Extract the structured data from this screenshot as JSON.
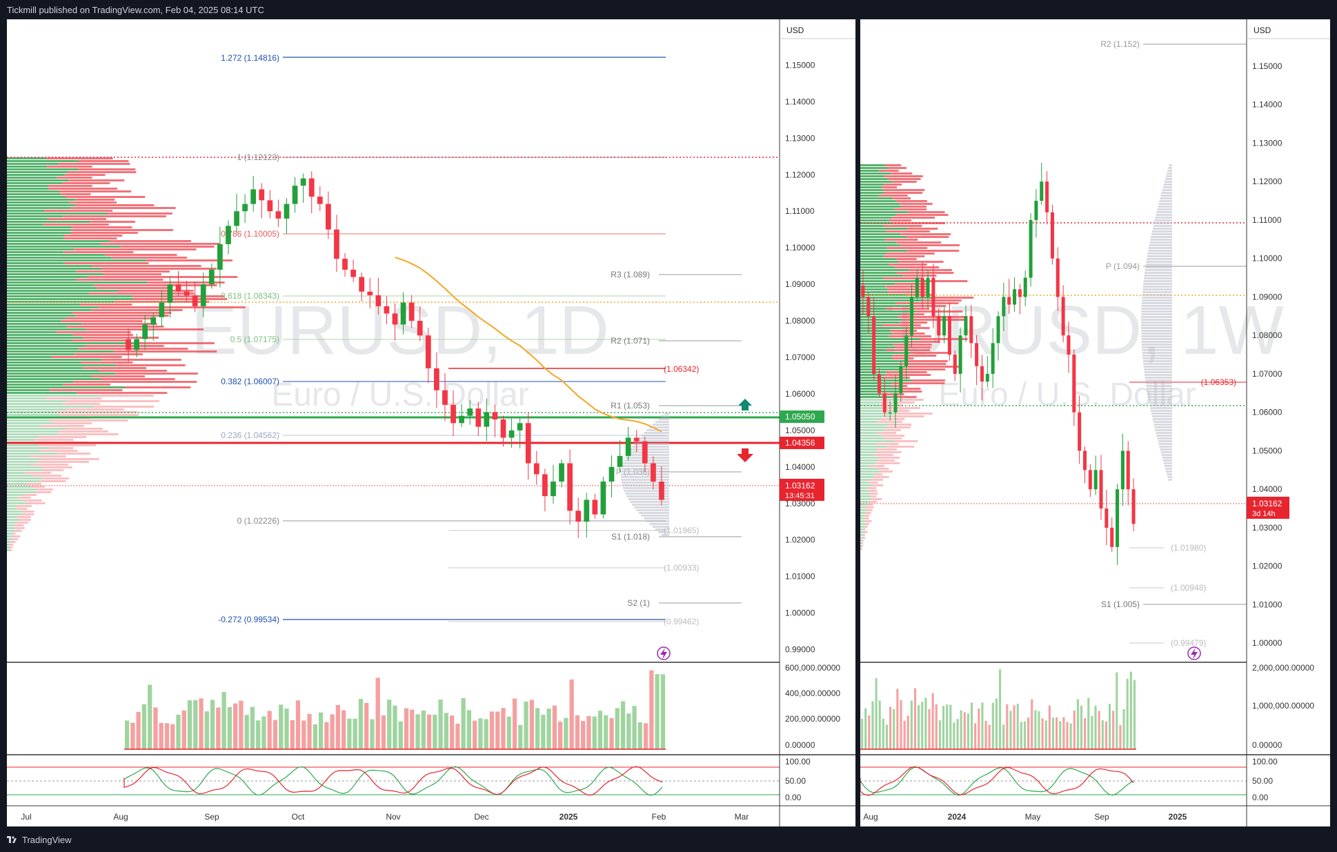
{
  "header": {
    "publisher_text": "Tickmill published on TradingView.com, Feb 04, 2025 08:14 UTC"
  },
  "footer": {
    "brand": "TradingView"
  },
  "colors": {
    "up": "#22a03a",
    "down": "#f23645",
    "fib_blue": "#1e4fb0",
    "ema": "#f5a623",
    "support_green": "#2fa84f",
    "resistance_red": "#e8242f"
  },
  "left_chart": {
    "watermark_symbol": "EURUSD, 1D",
    "watermark_name": "Euro / U.S. Dollar",
    "currency": "USD",
    "price_axis": [
      "1.15000",
      "1.14000",
      "1.13000",
      "1.12000",
      "1.11000",
      "1.10000",
      "1.09000",
      "1.08000",
      "1.07000",
      "1.06000",
      "1.05000",
      "1.04000",
      "1.03000",
      "1.02000",
      "1.01000",
      "1.00000",
      "0.99000"
    ],
    "time_axis": [
      "Jul",
      "Aug",
      "Sep",
      "Oct",
      "Nov",
      "Dec",
      "2025",
      "Feb",
      "Mar"
    ],
    "fib_labels": {
      "f1272": "1.272 (1.14816)",
      "f1": "1 (1.12123)",
      "f786": "0.786 (1.10005)",
      "f618": "0.618 (1.08343)",
      "f5": "0.5 (1.07175)",
      "f382": "0.382 (1.06007)",
      "f236": "0.236 (1.04562)",
      "f0": "0 (1.02226)",
      "fm272": "-0.272 (0.99534)"
    },
    "pivot_labels": {
      "r3": "R3 (1.089)",
      "r2": "R2 (1.071)",
      "r1": "R1 (1.053)",
      "p": "P (1.036)",
      "s1": "S1 (1.018)",
      "s2": "S2 (1)"
    },
    "level_labels": {
      "l10634": "(1.06342)",
      "l10196": "(1.01965)",
      "l10093": "(1.00933)",
      "l09946": "(0.99462)"
    },
    "price_tags": {
      "resistance": "1.05050",
      "support": "1.04356",
      "last": "1.03162",
      "countdown": "13:45:31"
    },
    "volume_axis": [
      "600,000.00000",
      "400,000.00000",
      "200,000.00000",
      "0.00000"
    ],
    "osc_axis": [
      "100.00",
      "50.00",
      "0.00"
    ]
  },
  "right_chart": {
    "watermark_symbol": "EURUSD, 1W",
    "watermark_name": "Euro / U.S. Dollar",
    "currency": "USD",
    "price_axis": [
      "1.15000",
      "1.14000",
      "1.13000",
      "1.12000",
      "1.11000",
      "1.10000",
      "1.09000",
      "1.08000",
      "1.07000",
      "1.06000",
      "1.05000",
      "1.04000",
      "1.03000",
      "1.02000",
      "1.01000",
      "1.00000"
    ],
    "time_axis": [
      "Aug",
      "2024",
      "May",
      "Sep",
      "2025"
    ],
    "pivot_labels": {
      "r2": "R2 (1.152)",
      "p": "P (1.094)",
      "s1": "S1 (1.005)"
    },
    "level_labels": {
      "l10635": "(1.06353)",
      "l10198": "(1.01980)",
      "l10094": "(1.00948)",
      "l09947": "(0.99479)"
    },
    "price_tags": {
      "last": "1.03162",
      "countdown": "3d 14h"
    },
    "volume_axis": [
      "2,000,000.00000",
      "1,000,000.00000",
      "0.00000"
    ],
    "osc_axis": [
      "100.00",
      "50.00",
      "0.00"
    ]
  },
  "chart_data": [
    {
      "type": "candlestick",
      "symbol": "EURUSD",
      "timeframe": "1D",
      "approx_closes": [
        1.072,
        1.075,
        1.079,
        1.081,
        1.085,
        1.09,
        1.088,
        1.087,
        1.084,
        1.09,
        1.094,
        1.101,
        1.106,
        1.11,
        1.112,
        1.116,
        1.113,
        1.11,
        1.108,
        1.112,
        1.117,
        1.119,
        1.114,
        1.112,
        1.105,
        1.097,
        1.094,
        1.092,
        1.088,
        1.087,
        1.084,
        1.082,
        1.079,
        1.085,
        1.08,
        1.076,
        1.067,
        1.061,
        1.057,
        1.052,
        1.054,
        1.056,
        1.051,
        1.055,
        1.053,
        1.048,
        1.05,
        1.052,
        1.041,
        1.038,
        1.032,
        1.036,
        1.041,
        1.028,
        1.025,
        1.031,
        1.027,
        1.036,
        1.04,
        1.043,
        1.048,
        1.047,
        1.041,
        1.036,
        1.031
      ],
      "ylim": [
        0.985,
        1.155
      ],
      "x_labels": [
        "Jul",
        "Aug",
        "Sep",
        "Oct",
        "Nov",
        "Dec",
        "2025",
        "Feb",
        "Mar"
      ],
      "last": 1.03162,
      "ema_trend": "declining from 1.121 to 1.059"
    },
    {
      "type": "candlestick",
      "symbol": "EURUSD",
      "timeframe": "1W",
      "approx_closes": [
        1.09,
        1.085,
        1.07,
        1.065,
        1.06,
        1.06,
        1.065,
        1.072,
        1.08,
        1.09,
        1.095,
        1.09,
        1.095,
        1.085,
        1.08,
        1.085,
        1.075,
        1.07,
        1.08,
        1.085,
        1.078,
        1.072,
        1.068,
        1.07,
        1.078,
        1.085,
        1.09,
        1.088,
        1.092,
        1.09,
        1.095,
        1.11,
        1.115,
        1.12,
        1.112,
        1.1,
        1.09,
        1.08,
        1.075,
        1.06,
        1.05,
        1.045,
        1.04,
        1.045,
        1.035,
        1.03,
        1.025,
        1.04,
        1.05,
        1.04,
        1.031
      ],
      "ylim": [
        0.99,
        1.155
      ],
      "x_labels": [
        "Aug",
        "2024",
        "May",
        "Sep",
        "2025"
      ],
      "last": 1.03162
    }
  ]
}
